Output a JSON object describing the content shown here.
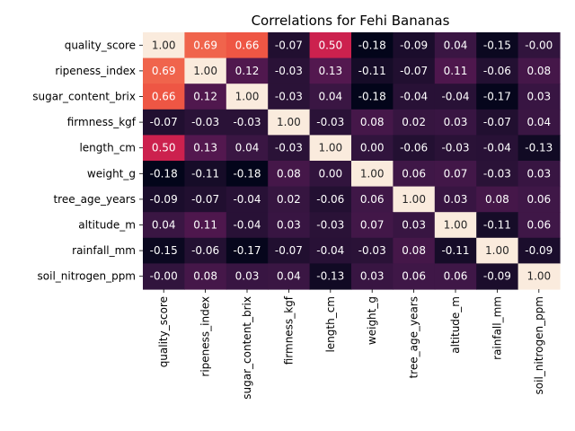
{
  "chart_data": {
    "type": "heatmap",
    "title": "Correlations for Fehi Bananas",
    "xlabel": "",
    "ylabel": "",
    "labels": [
      "quality_score",
      "ripeness_index",
      "sugar_content_brix",
      "firmness_kgf",
      "length_cm",
      "weight_g",
      "tree_age_years",
      "altitude_m",
      "rainfall_mm",
      "soil_nitrogen_ppm"
    ],
    "values": [
      [
        1.0,
        0.69,
        0.66,
        -0.07,
        0.5,
        -0.18,
        -0.09,
        0.04,
        -0.15,
        -0.0
      ],
      [
        0.69,
        1.0,
        0.12,
        -0.03,
        0.13,
        -0.11,
        -0.07,
        0.11,
        -0.06,
        0.08
      ],
      [
        0.66,
        0.12,
        1.0,
        -0.03,
        0.04,
        -0.18,
        -0.04,
        -0.04,
        -0.17,
        0.03
      ],
      [
        -0.07,
        -0.03,
        -0.03,
        1.0,
        -0.03,
        0.08,
        0.02,
        0.03,
        -0.07,
        0.04
      ],
      [
        0.5,
        0.13,
        0.04,
        -0.03,
        1.0,
        0.0,
        -0.06,
        -0.03,
        -0.04,
        -0.13
      ],
      [
        -0.18,
        -0.11,
        -0.18,
        0.08,
        0.0,
        1.0,
        0.06,
        0.07,
        -0.03,
        0.03
      ],
      [
        -0.09,
        -0.07,
        -0.04,
        0.02,
        -0.06,
        0.06,
        1.0,
        0.03,
        0.08,
        0.06
      ],
      [
        0.04,
        0.11,
        -0.04,
        0.03,
        -0.03,
        0.07,
        0.03,
        1.0,
        -0.11,
        0.06
      ],
      [
        -0.15,
        -0.06,
        -0.17,
        -0.07,
        -0.04,
        -0.03,
        0.08,
        -0.11,
        1.0,
        -0.09
      ],
      [
        -0.0,
        0.08,
        0.03,
        0.04,
        -0.13,
        0.03,
        0.06,
        0.06,
        -0.09,
        1.0
      ]
    ],
    "value_format": "2 decimals",
    "colormap": "rocket",
    "color_range": [
      -0.18,
      1.0
    ],
    "colorbar": false,
    "grid": false
  }
}
